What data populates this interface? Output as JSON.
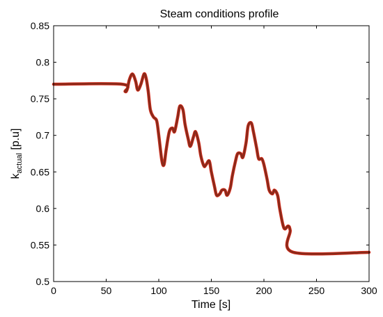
{
  "chart_data": {
    "type": "line",
    "title": "Steam conditions profile",
    "xlabel": "Time [s]",
    "ylabel_main": "k",
    "ylabel_sub": "actual",
    "ylabel_unit": " [p.u]",
    "xlim": [
      0,
      300
    ],
    "ylim": [
      0.5,
      0.85
    ],
    "xticks": [
      0,
      50,
      100,
      150,
      200,
      250,
      300
    ],
    "yticks": [
      0.5,
      0.55,
      0.6,
      0.65,
      0.7,
      0.75,
      0.8,
      0.85
    ],
    "ytick_labels": [
      "0.5",
      "0.55",
      "0.6",
      "0.65",
      "0.7",
      "0.75",
      "0.8",
      "0.85"
    ],
    "grid": false,
    "series": [
      {
        "color": "#8b2a1a",
        "highlight_color": "#e03020",
        "x": [
          0,
          65,
          68,
          70,
          72,
          75,
          78,
          80,
          83,
          86,
          88,
          90,
          92,
          95,
          98,
          100,
          103,
          105,
          107,
          110,
          113,
          115,
          118,
          120,
          123,
          125,
          128,
          130,
          133,
          135,
          138,
          140,
          143,
          145,
          148,
          150,
          153,
          155,
          158,
          160,
          163,
          165,
          168,
          170,
          173,
          175,
          178,
          180,
          183,
          185,
          188,
          190,
          193,
          195,
          198,
          200,
          203,
          205,
          208,
          210,
          213,
          215,
          218,
          220,
          223,
          225,
          228,
          300
        ],
        "y": [
          0.77,
          0.77,
          0.76,
          0.763,
          0.776,
          0.784,
          0.774,
          0.762,
          0.77,
          0.784,
          0.778,
          0.76,
          0.735,
          0.725,
          0.72,
          0.7,
          0.665,
          0.66,
          0.68,
          0.705,
          0.71,
          0.705,
          0.725,
          0.74,
          0.735,
          0.715,
          0.695,
          0.685,
          0.698,
          0.705,
          0.69,
          0.672,
          0.658,
          0.66,
          0.665,
          0.65,
          0.63,
          0.618,
          0.62,
          0.625,
          0.625,
          0.618,
          0.628,
          0.645,
          0.665,
          0.675,
          0.675,
          0.67,
          0.69,
          0.713,
          0.717,
          0.705,
          0.683,
          0.668,
          0.668,
          0.66,
          0.64,
          0.625,
          0.62,
          0.625,
          0.618,
          0.6,
          0.578,
          0.572,
          0.576,
          0.57,
          0.54,
          0.54
        ]
      }
    ]
  }
}
